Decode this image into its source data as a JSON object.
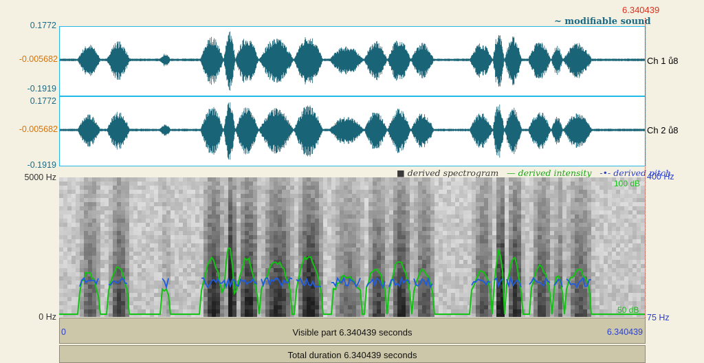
{
  "cursor": {
    "time": "6.340439"
  },
  "wave_panel": {
    "modifiable_label": "modifiable sound",
    "ch1": {
      "max": "0.1772",
      "mid": "-0.005682",
      "min": "-0.1919",
      "label": "Ch 1 ů8"
    },
    "ch2": {
      "max": "0.1772",
      "mid": "-0.005682",
      "min": "-0.1919",
      "label": "Ch 2 ů8"
    }
  },
  "legend": {
    "spectrogram": "derived spectrogram",
    "intensity": "derived intensity",
    "pitch": "derived pitch"
  },
  "spectrogram": {
    "freq_top": "5000 Hz",
    "freq_bottom": "0 Hz",
    "pitch_top": "400 Hz",
    "pitch_bottom": "75 Hz",
    "intensity_top": "100 dB",
    "intensity_bottom": "50 dB"
  },
  "visible_bar": {
    "start": "0",
    "end": "6.340439",
    "label": "Visible part 6.340439 seconds"
  },
  "total_bar": {
    "label": "Total duration 6.340439 seconds"
  },
  "colors": {
    "wave": "#1a6478",
    "intensity": "#11c411",
    "pitch": "#1d5ce0",
    "cursor": "#d8321f"
  }
}
